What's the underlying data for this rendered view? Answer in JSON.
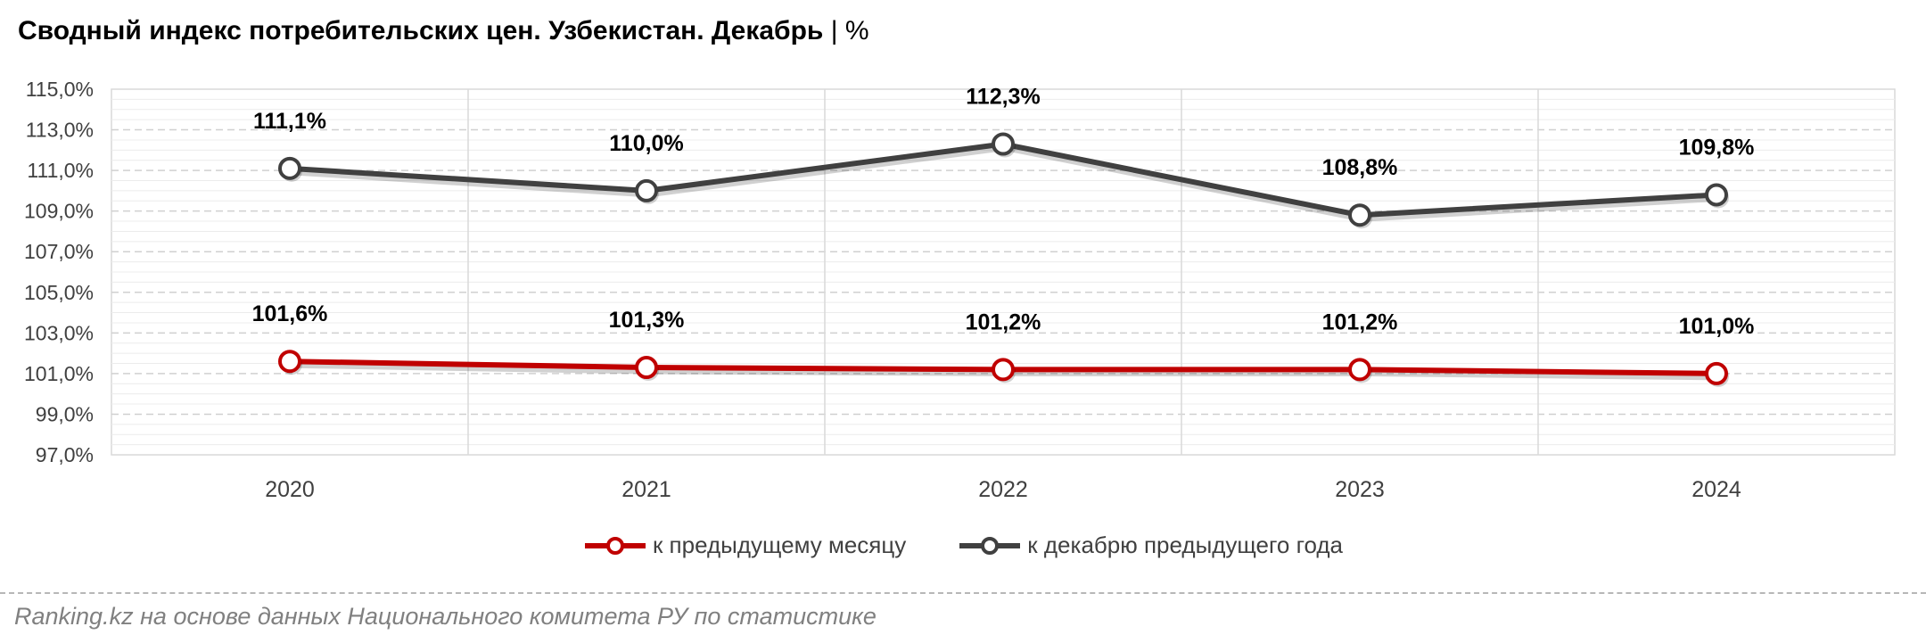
{
  "title": {
    "main": "Сводный индекс потребительских цен. Узбекистан. Декабрь",
    "separator": "|",
    "unit": "%"
  },
  "source": "Ranking.kz на основе данных Национального комитета РУ по статистике",
  "chart_data": {
    "type": "line",
    "categories": [
      "2020",
      "2021",
      "2022",
      "2023",
      "2024"
    ],
    "ylim": [
      97.0,
      115.0
    ],
    "yticks": [
      "97,0%",
      "99,0%",
      "101,0%",
      "103,0%",
      "105,0%",
      "107,0%",
      "109,0%",
      "111,0%",
      "113,0%",
      "115,0%"
    ],
    "grid": true,
    "legend_position": "bottom",
    "series": [
      {
        "name": "к предыдущему месяцу",
        "color": "#c00000",
        "values": [
          101.6,
          101.3,
          101.2,
          101.2,
          101.0
        ],
        "labels": [
          "101,6%",
          "101,3%",
          "101,2%",
          "101,2%",
          "101,0%"
        ]
      },
      {
        "name": "к декабрю предыдущего года",
        "color": "#404040",
        "values": [
          111.1,
          110.0,
          112.3,
          108.8,
          109.8
        ],
        "labels": [
          "111,1%",
          "110,0%",
          "112,3%",
          "108,8%",
          "109,8%"
        ]
      }
    ]
  }
}
